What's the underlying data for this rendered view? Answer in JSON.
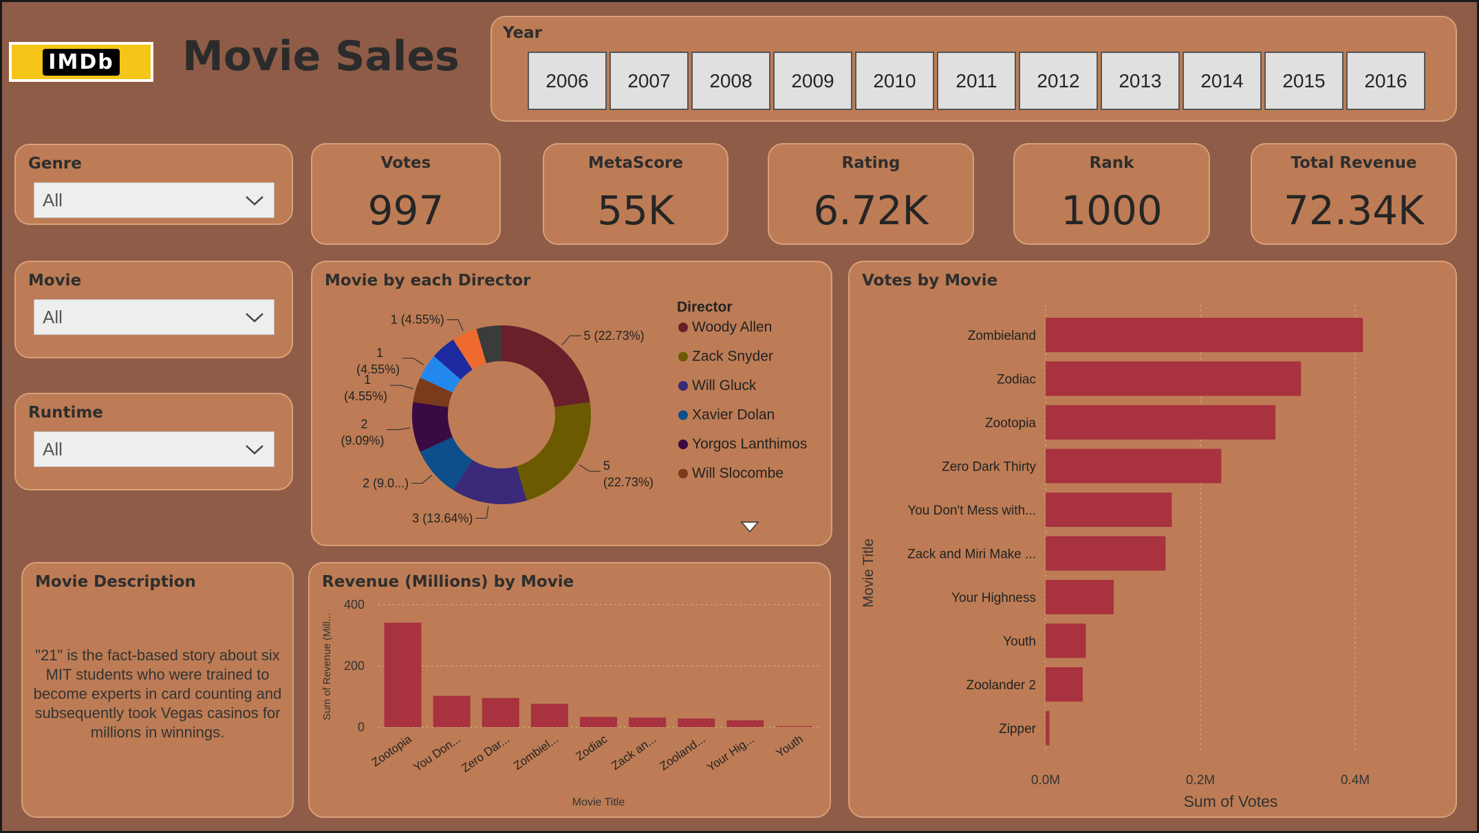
{
  "header": {
    "logo_text": "IMDb",
    "title": "Movie Sales"
  },
  "year_slicer": {
    "title": "Year",
    "years": [
      "2006",
      "2007",
      "2008",
      "2009",
      "2010",
      "2011",
      "2012",
      "2013",
      "2014",
      "2015",
      "2016"
    ]
  },
  "slicers": {
    "genre": {
      "title": "Genre",
      "value": "All"
    },
    "movie": {
      "title": "Movie",
      "value": "All"
    },
    "runtime": {
      "title": "Runtime",
      "value": "All"
    }
  },
  "kpis": {
    "votes": {
      "title": "Votes",
      "value": "997"
    },
    "metascore": {
      "title": "MetaScore",
      "value": "55K"
    },
    "rating": {
      "title": "Rating",
      "value": "6.72K"
    },
    "rank": {
      "title": "Rank",
      "value": "1000"
    },
    "revenue": {
      "title": "Total Revenue",
      "value": "72.34K"
    }
  },
  "description": {
    "title": "Movie Description",
    "text": "\"21\" is the fact-based story about six MIT students who were trained to become experts in card counting and subsequently took Vegas casinos for millions in winnings."
  },
  "colors": {
    "background": "#8f5c47",
    "card": "#bd7c55",
    "bar": "#a8323f"
  },
  "chart_data": [
    {
      "type": "pie",
      "title": "Movie by each Director",
      "legend_title": "Director",
      "legend": [
        {
          "label": "Woody Allen",
          "color": "#6b1f2a"
        },
        {
          "label": "Zack Snyder",
          "color": "#6b5a00"
        },
        {
          "label": "Will Gluck",
          "color": "#3a2878"
        },
        {
          "label": "Xavier Dolan",
          "color": "#0c4f8a"
        },
        {
          "label": "Yorgos Lanthimos",
          "color": "#3a0a45"
        },
        {
          "label": "Will Slocombe",
          "color": "#7a3a1c"
        }
      ],
      "slices": [
        {
          "value": 5,
          "label_line1": "5 (22.73%)",
          "label_line2": "",
          "color": "#6b1f2a"
        },
        {
          "value": 5,
          "label_line1": "5",
          "label_line2": "(22.73%)",
          "color": "#6b5a00"
        },
        {
          "value": 3,
          "label_line1": "3 (13.64%)",
          "label_line2": "",
          "color": "#3a2878"
        },
        {
          "value": 2,
          "label_line1": "2 (9.0...)",
          "label_line2": "",
          "color": "#0c4f8a"
        },
        {
          "value": 2,
          "label_line1": "2",
          "label_line2": "(9.09%)",
          "color": "#3a0a45"
        },
        {
          "value": 1,
          "label_line1": "1",
          "label_line2": "(4.55%)",
          "color": "#7a3a1c"
        },
        {
          "value": 1,
          "label_line1": "1",
          "label_line2": "(4.55%)",
          "color": "#2288ee"
        },
        {
          "value": 1,
          "label_line1": "",
          "label_line2": "",
          "color": "#1d2aa0"
        },
        {
          "value": 1,
          "label_line1": "1 (4.55%)",
          "label_line2": "",
          "color": "#ee6a2e"
        },
        {
          "value": 1,
          "label_line1": "",
          "label_line2": "",
          "color": "#3b3b3b"
        }
      ]
    },
    {
      "type": "bar",
      "title": "Revenue (Millions) by Movie",
      "xlabel": "Movie Title",
      "ylabel": "Sum of Revenue (Mill...",
      "ylim": [
        0,
        400
      ],
      "yticks": [
        "0",
        "200",
        "400"
      ],
      "categories": [
        "Zootopia",
        "You Don...",
        "Zero Dar...",
        "Zombiel...",
        "Zodiac",
        "Zack an...",
        "Zooland...",
        "Your Hig...",
        "Youth"
      ],
      "values": [
        341,
        102,
        95,
        76,
        33,
        31,
        28,
        22,
        3
      ]
    },
    {
      "type": "bar",
      "orientation": "horizontal",
      "title": "Votes by Movie",
      "xlabel": "Sum of Votes",
      "ylabel": "Movie Title",
      "xlim": [
        0,
        0.4
      ],
      "xticks": [
        "0.0M",
        "0.2M",
        "0.4M"
      ],
      "categories": [
        "Zombieland",
        "Zodiac",
        "Zootopia",
        "Zero Dark Thirty",
        "You Don't Mess with...",
        "Zack and Miri Make ...",
        "Your Highness",
        "Youth",
        "Zoolander 2",
        "Zipper"
      ],
      "values": [
        0.41,
        0.33,
        0.297,
        0.227,
        0.163,
        0.155,
        0.088,
        0.052,
        0.048,
        0.005
      ]
    }
  ]
}
